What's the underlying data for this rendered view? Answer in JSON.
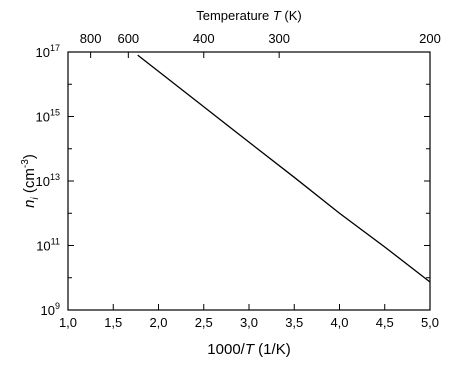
{
  "chart_data": {
    "type": "line",
    "title_parts": [
      "Temperature ",
      "T",
      " (K)"
    ],
    "x_label_parts": [
      "1000/",
      "T",
      " (1/K)"
    ],
    "y_label_parts": [
      "n",
      "i",
      " (cm",
      "-3",
      ")"
    ],
    "x": [
      1.77,
      2.0,
      2.5,
      3.0,
      3.5,
      4.0,
      4.5,
      5.0
    ],
    "series": [
      {
        "color": "#000000",
        "values": [
          8e+16,
          2.5e+16,
          2000000000000000.0,
          160000000000000.0,
          13000000000000.0,
          1000000000000.0,
          90000000000.0,
          7400000000.0
        ]
      }
    ],
    "xlim": [
      1.0,
      5.0
    ],
    "xticks": [
      {
        "value": 1.0,
        "label": "1,0"
      },
      {
        "value": 1.5,
        "label": "1,5"
      },
      {
        "value": 2.0,
        "label": "2,0"
      },
      {
        "value": 2.5,
        "label": "2,5"
      },
      {
        "value": 3.0,
        "label": "3,0"
      },
      {
        "value": 3.5,
        "label": "3,5"
      },
      {
        "value": 4.0,
        "label": "4,0"
      },
      {
        "value": 4.5,
        "label": "4,5"
      },
      {
        "value": 5.0,
        "label": "5,0"
      }
    ],
    "x2ticks": [
      800,
      600,
      400,
      300,
      200
    ],
    "ylim": [
      1000000000.0,
      1e+17
    ],
    "ylog": true,
    "yticks": [
      {
        "value": 1000000000.0,
        "label": "10",
        "exponent": "9"
      },
      {
        "value": 100000000000.0,
        "label": "10",
        "exponent": "11"
      },
      {
        "value": 10000000000000.0,
        "label": "10",
        "exponent": "13"
      },
      {
        "value": 1000000000000000.0,
        "label": "10",
        "exponent": "15"
      },
      {
        "value": 1e+17,
        "label": "10",
        "exponent": "17"
      }
    ],
    "yminor_ticks": [
      10000000000.0,
      1000000000000.0,
      100000000000000.0,
      1e+16
    ]
  }
}
